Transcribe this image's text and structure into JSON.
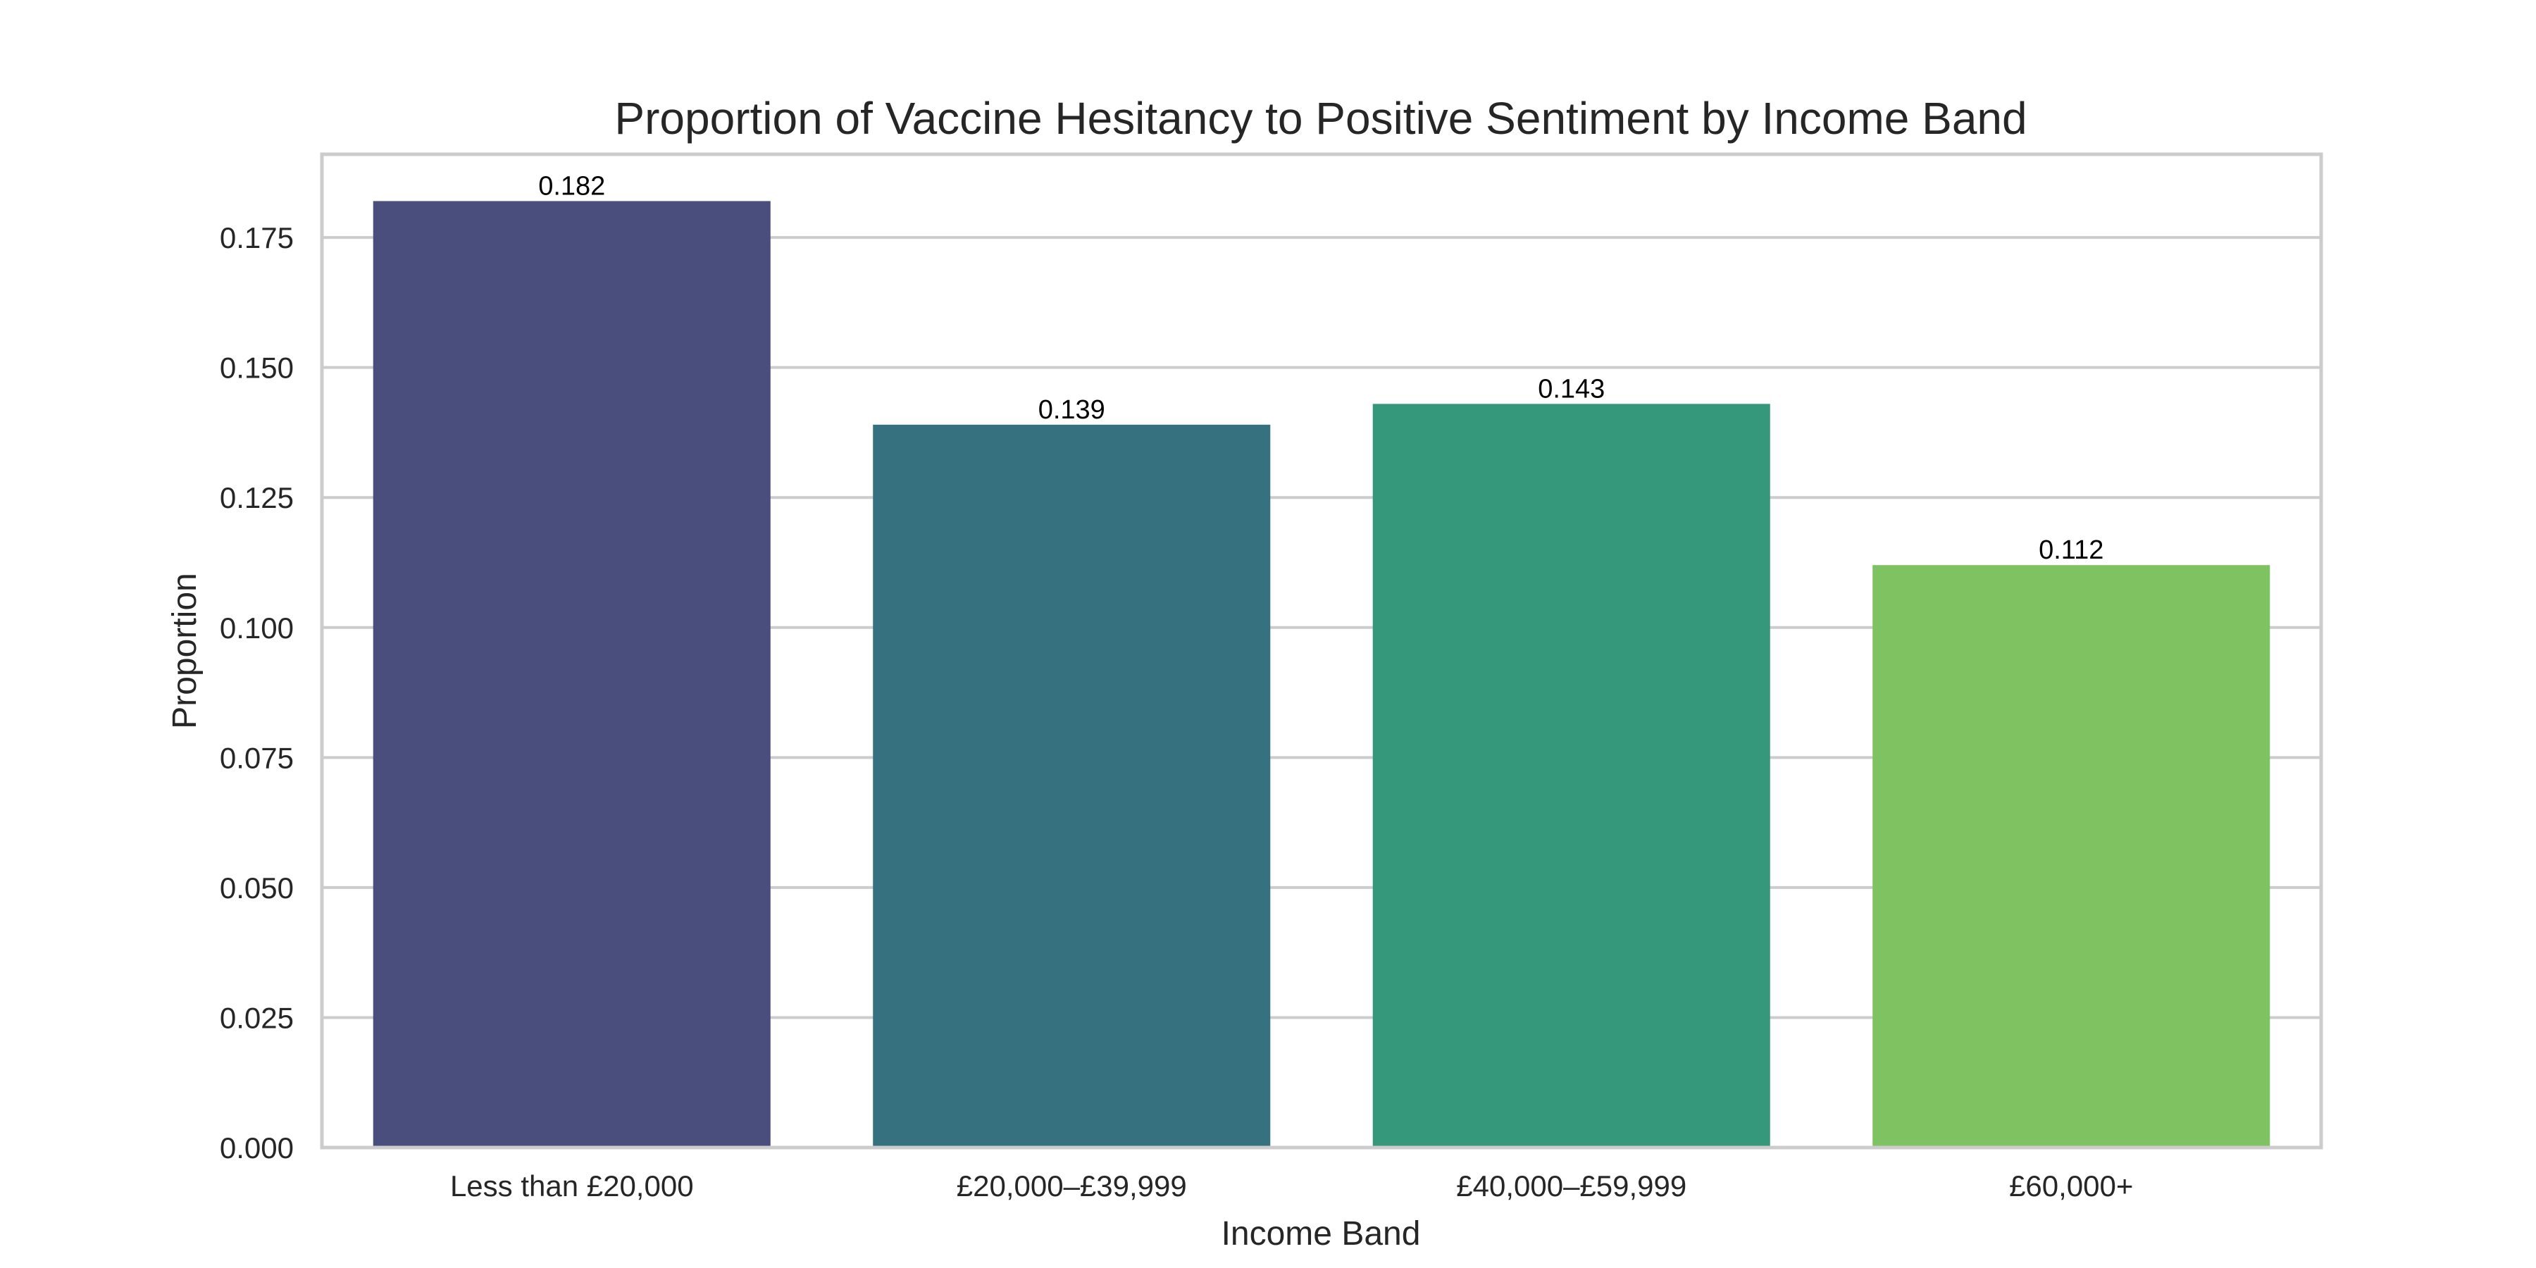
{
  "chart_data": {
    "type": "bar",
    "title": "Proportion of Vaccine Hesitancy to Positive Sentiment by Income Band",
    "xlabel": "Income Band",
    "ylabel": "Proportion",
    "categories": [
      "Less than £20,000",
      "£20,000–£39,999",
      "£40,000–£59,999",
      "£60,000+"
    ],
    "values": [
      0.182,
      0.139,
      0.143,
      0.112
    ],
    "value_labels": [
      "0.182",
      "0.139",
      "0.143",
      "0.112"
    ],
    "colors": [
      "#4a4e7c",
      "#367180",
      "#35987b",
      "#7fc262"
    ],
    "ylim": [
      0,
      0.191
    ],
    "yticks": [
      0,
      0.025,
      0.05,
      0.075,
      0.1,
      0.125,
      0.15,
      0.175
    ],
    "ytick_labels": [
      "0.000",
      "0.025",
      "0.050",
      "0.075",
      "0.100",
      "0.125",
      "0.150",
      "0.175"
    ],
    "grid": "horizontal",
    "legend": "none"
  }
}
